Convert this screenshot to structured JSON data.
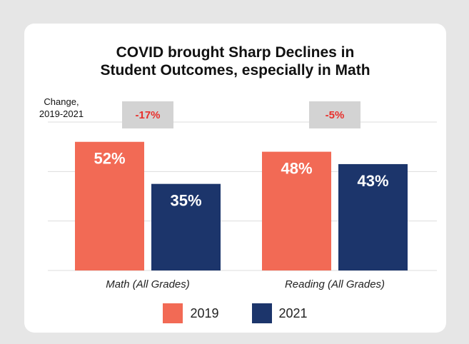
{
  "colors": {
    "series_2019": "#f26a55",
    "series_2021": "#1c356b",
    "change_box": "#d3d3d3",
    "change_text": "#e8302c",
    "grid": "#dddddd"
  },
  "chart_data": {
    "type": "bar",
    "title": "COVID brought Sharp Declines in Student Outcomes, especially in Math",
    "title_lines": [
      "COVID brought Sharp Declines in",
      "Student Outcomes, especially in Math"
    ],
    "change_label_lines": [
      "Change,",
      "2019-2021"
    ],
    "categories": [
      "Math (All Grades)",
      "Reading (All Grades)"
    ],
    "series": [
      {
        "name": "2019",
        "values": [
          52,
          48
        ],
        "labels": [
          "52%",
          "48%"
        ]
      },
      {
        "name": "2021",
        "values": [
          35,
          43
        ],
        "labels": [
          "35%",
          "43%"
        ]
      }
    ],
    "changes": [
      "-17%",
      "-5%"
    ],
    "ylim": [
      0,
      60
    ],
    "grid": true,
    "legend": "bottom"
  }
}
